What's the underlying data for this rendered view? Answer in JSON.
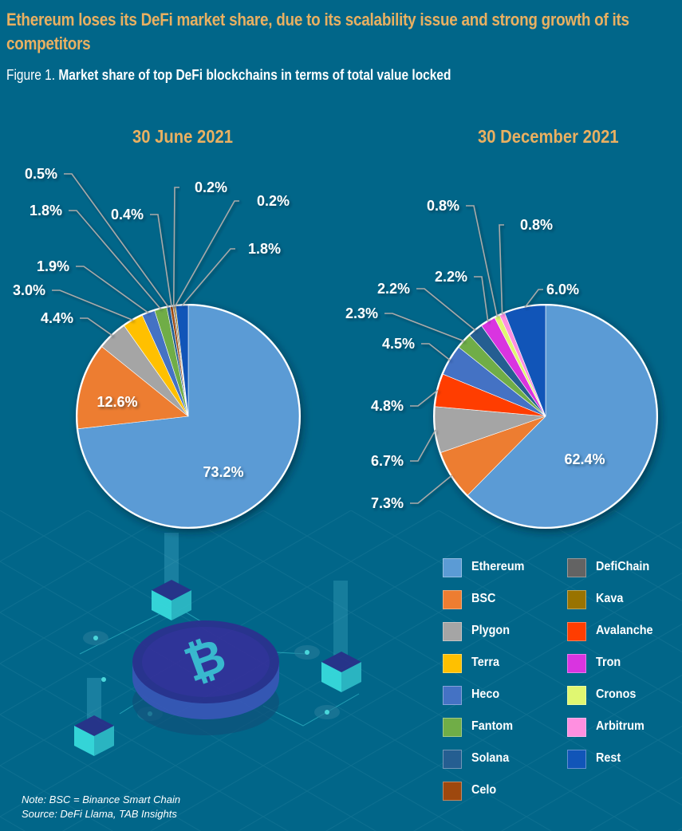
{
  "header": {
    "headline": "Ethereum loses its DeFi market share, due to its scalability issue and strong growth of its competitors",
    "figure_number": "Figure 1.",
    "figure_title": "Market share of top DeFi blockchains in terms of total value locked"
  },
  "colors": {
    "background": "#016689",
    "accent_title": "#E9B061",
    "Ethereum": "#5B9BD5",
    "BSC": "#ED7D31",
    "Plygon": "#A5A5A5",
    "Terra": "#FFC000",
    "Heco": "#4472C4",
    "Fantom": "#70AD47",
    "Solana": "#255E91",
    "Celo": "#9E480E",
    "DefiChain": "#636363",
    "Kava": "#997300",
    "Avalanche": "#FF3D00",
    "Tron": "#D934E0",
    "Cronos": "#E0F771",
    "Arbitrum": "#FF8FE0",
    "Rest": "#1155B8"
  },
  "chart_data": [
    {
      "type": "pie",
      "title": "30 June 2021",
      "start_angle": "12 o'clock, clockwise",
      "labels": [
        "Ethereum",
        "BSC",
        "Plygon",
        "Terra",
        "Heco",
        "Fantom",
        "Solana",
        "Celo",
        "DefiChain",
        "Kava",
        "Rest"
      ],
      "values": [
        73.2,
        12.6,
        4.4,
        3.0,
        1.9,
        1.8,
        0.5,
        0.4,
        0.2,
        0.2,
        1.8
      ],
      "value_labels": [
        "73.2%",
        "12.6%",
        "4.4%",
        "3.0%",
        "1.9%",
        "1.8%",
        "0.5%",
        "0.4%",
        "0.2%",
        "0.2%",
        "1.8%"
      ]
    },
    {
      "type": "pie",
      "title": "30 December 2021",
      "start_angle": "12 o'clock, clockwise",
      "labels": [
        "Ethereum",
        "BSC",
        "Plygon",
        "Avalanche",
        "Heco",
        "Fantom",
        "Solana",
        "Tron",
        "Cronos",
        "Arbitrum",
        "Rest"
      ],
      "values": [
        62.4,
        7.3,
        6.7,
        4.8,
        4.5,
        2.3,
        2.2,
        2.2,
        0.8,
        0.8,
        6.0
      ],
      "value_labels": [
        "62.4%",
        "7.3%",
        "6.7%",
        "4.8%",
        "4.5%",
        "2.3%",
        "2.2%",
        "2.2%",
        "0.8%",
        "0.8%",
        "6.0%"
      ]
    }
  ],
  "legend": {
    "left_column": [
      "Ethereum",
      "BSC",
      "Plygon",
      "Terra",
      "Heco",
      "Fantom",
      "Solana",
      "Celo"
    ],
    "right_column": [
      "DefiChain",
      "Kava",
      "Avalanche",
      "Tron",
      "Cronos",
      "Arbitrum",
      "Rest"
    ]
  },
  "footnote": {
    "note": "Note: BSC = Binance Smart Chain",
    "source": "Source: DeFi Llama, TAB Insights"
  }
}
